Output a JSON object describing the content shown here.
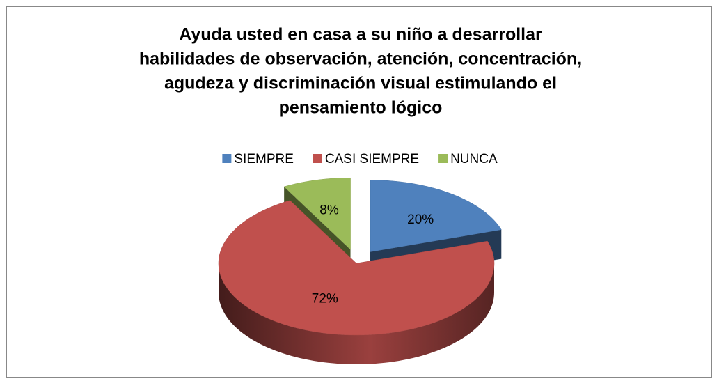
{
  "chart_data": {
    "type": "pie3d",
    "title": [
      "Ayuda usted en casa a su niño a desarrollar",
      "habilidades de observación, atención, concentración,",
      "agudeza y discriminación visual estimulando el",
      "pensamiento lógico"
    ],
    "categories": [
      "SIEMPRE",
      "CASI SIEMPRE",
      "NUNCA"
    ],
    "values": [
      20,
      72,
      8
    ],
    "value_labels": [
      "20%",
      "72%",
      "8%"
    ],
    "colors": [
      "#4f81bd",
      "#c0504d",
      "#9bbb59"
    ],
    "legend": "top"
  }
}
